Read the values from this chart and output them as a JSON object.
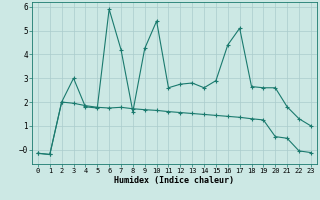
{
  "xlabel": "Humidex (Indice chaleur)",
  "line1_x": [
    0,
    1,
    2,
    3,
    4,
    5,
    6,
    7,
    8,
    9,
    10,
    11,
    12,
    13,
    14,
    15,
    16,
    17,
    18,
    19,
    20,
    21,
    22,
    23
  ],
  "line1_y": [
    -0.15,
    -0.2,
    2.0,
    3.0,
    1.8,
    1.75,
    5.9,
    4.2,
    1.6,
    4.25,
    5.4,
    2.6,
    2.75,
    2.8,
    2.6,
    2.9,
    4.4,
    5.1,
    2.65,
    2.6,
    2.6,
    1.8,
    1.3,
    1.0
  ],
  "line2_x": [
    0,
    1,
    2,
    3,
    4,
    5,
    6,
    7,
    8,
    9,
    10,
    11,
    12,
    13,
    14,
    15,
    16,
    17,
    18,
    19,
    20,
    21,
    22,
    23
  ],
  "line2_y": [
    -0.15,
    -0.2,
    2.0,
    1.95,
    1.85,
    1.78,
    1.75,
    1.78,
    1.72,
    1.68,
    1.65,
    1.6,
    1.56,
    1.52,
    1.48,
    1.44,
    1.4,
    1.36,
    1.3,
    1.25,
    0.55,
    0.48,
    -0.05,
    -0.12
  ],
  "line_color": "#1a7a6e",
  "bg_color": "#cce8e4",
  "grid_color": "#aacccc",
  "ylim": [
    -0.6,
    6.2
  ],
  "xlim": [
    -0.5,
    23.5
  ],
  "yticks": [
    0,
    1,
    2,
    3,
    4,
    5,
    6
  ],
  "ytick_labels": [
    "−0",
    "1",
    "2",
    "3",
    "4",
    "5",
    "6"
  ],
  "xticks": [
    0,
    1,
    2,
    3,
    4,
    5,
    6,
    7,
    8,
    9,
    10,
    11,
    12,
    13,
    14,
    15,
    16,
    17,
    18,
    19,
    20,
    21,
    22,
    23
  ],
  "marker": "+"
}
